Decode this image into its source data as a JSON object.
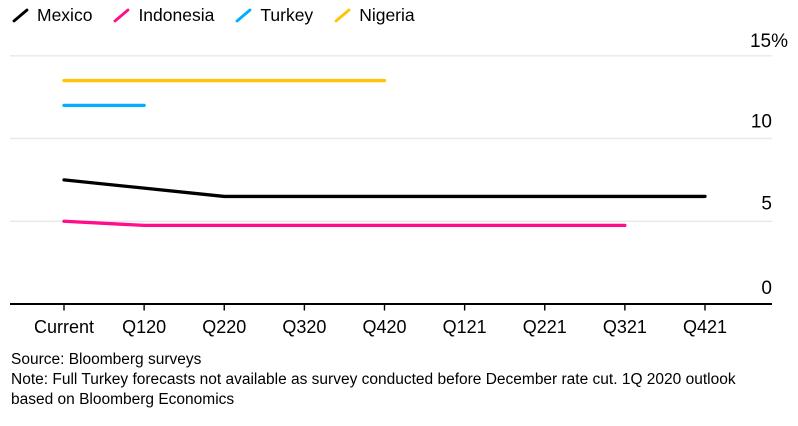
{
  "legend": {
    "items": [
      {
        "label": "Mexico",
        "color": "#000000"
      },
      {
        "label": "Indonesia",
        "color": "#FF0D8A"
      },
      {
        "label": "Turkey",
        "color": "#00ADFF"
      },
      {
        "label": "Nigeria",
        "color": "#FFC408"
      }
    ]
  },
  "chart_data": {
    "type": "line",
    "title": "",
    "unit": "%",
    "categories": [
      "Current",
      "Q120",
      "Q220",
      "Q320",
      "Q420",
      "Q121",
      "Q221",
      "Q321",
      "Q421"
    ],
    "series": [
      {
        "name": "Mexico",
        "color": "#000000",
        "values": [
          7.5,
          7.0,
          6.5,
          6.5,
          6.5,
          6.5,
          6.5,
          6.5,
          6.5
        ]
      },
      {
        "name": "Indonesia",
        "color": "#FF0D8A",
        "values": [
          5.0,
          4.75,
          4.75,
          4.75,
          4.75,
          4.75,
          4.75,
          4.75,
          null
        ]
      },
      {
        "name": "Turkey",
        "color": "#00ADFF",
        "values": [
          12.0,
          12.0,
          null,
          null,
          null,
          null,
          null,
          null,
          null
        ]
      },
      {
        "name": "Nigeria",
        "color": "#FFC408",
        "values": [
          13.5,
          13.5,
          13.5,
          13.5,
          13.5,
          null,
          null,
          null,
          null
        ]
      }
    ],
    "yticks": [
      {
        "label": "15%",
        "value": 15
      },
      {
        "label": "10",
        "value": 10
      },
      {
        "label": "5",
        "value": 5
      },
      {
        "label": "0",
        "value": 0
      }
    ],
    "ylim": [
      0,
      15
    ],
    "grid": "horizontal",
    "legend_position": "top-left",
    "gridline_color": "#E8E8E8",
    "axis_color": "#000000"
  },
  "footer": {
    "source": "Source: Bloomberg surveys",
    "note": "Note: Full Turkey forecasts not available as survey conducted before December rate cut. 1Q 2020 outlook based on Bloomberg Economics"
  }
}
